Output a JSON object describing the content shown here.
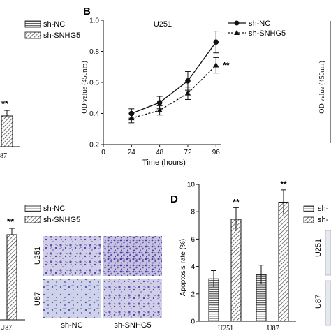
{
  "panel_labels": {
    "b": "B",
    "d": "D"
  },
  "colors": {
    "ink": "#111111",
    "stain": "#6a4fb0",
    "background": "#ffffff"
  },
  "fragment_left_top": {
    "legend": [
      "sh-NC",
      "sh-SNHG5"
    ],
    "significance": "**",
    "tick_fragment": "87"
  },
  "fragment_left_bottom": {
    "legend": [
      "sh-NC",
      "sh-SNHG5"
    ],
    "significance": "**",
    "tick_fragment": "U87"
  },
  "fragment_right_top": {
    "ylabel": "OD value (450nm)"
  },
  "fragment_right_bottom": {
    "legend_fragment": [
      "sh-",
      "sh-"
    ],
    "row_labels": [
      "U251",
      "U87"
    ]
  },
  "micrographs": {
    "row_labels": [
      "U251",
      "U87"
    ],
    "col_labels": [
      "sh-NC",
      "sh-SNHG5"
    ]
  },
  "chart_data": [
    {
      "type": "line",
      "panel": "B",
      "title": "U251",
      "xlabel": "Time (hours)",
      "ylabel": "OD value (450nm)",
      "x": [
        24,
        48,
        72,
        96
      ],
      "xlim": [
        0,
        100
      ],
      "ylim": [
        0.2,
        1.0
      ],
      "xticks": [
        "0",
        "24",
        "48",
        "72",
        "96"
      ],
      "yticks": [
        "0.2",
        "0.4",
        "0.6",
        "0.8",
        "1.0"
      ],
      "significance": "**",
      "series": [
        {
          "name": "sh-NC",
          "marker": "circle",
          "line": "solid",
          "values": [
            0.4,
            0.47,
            0.61,
            0.86
          ],
          "errors": [
            0.03,
            0.04,
            0.06,
            0.07
          ]
        },
        {
          "name": "sh-SNHG5",
          "marker": "triangle",
          "line": "dashed",
          "values": [
            0.37,
            0.42,
            0.53,
            0.71
          ],
          "errors": [
            0.03,
            0.03,
            0.04,
            0.05
          ]
        }
      ],
      "legend_position": "top-right"
    },
    {
      "type": "bar",
      "panel": "D",
      "ylabel": "Apoptosis rate (%)",
      "categories": [
        "U251",
        "U87"
      ],
      "ylim": [
        0,
        10
      ],
      "yticks": [
        "0",
        "2",
        "4",
        "6",
        "8",
        "10"
      ],
      "series": [
        {
          "name": "sh-NC",
          "pattern": "horizontal-lines",
          "values": [
            3.1,
            3.4
          ],
          "errors": [
            0.6,
            0.7
          ]
        },
        {
          "name": "sh-SNHG5",
          "pattern": "diagonal-lines",
          "values": [
            7.45,
            8.7
          ],
          "errors": [
            0.85,
            0.9
          ],
          "significance": [
            "**",
            "**"
          ]
        }
      ]
    }
  ]
}
